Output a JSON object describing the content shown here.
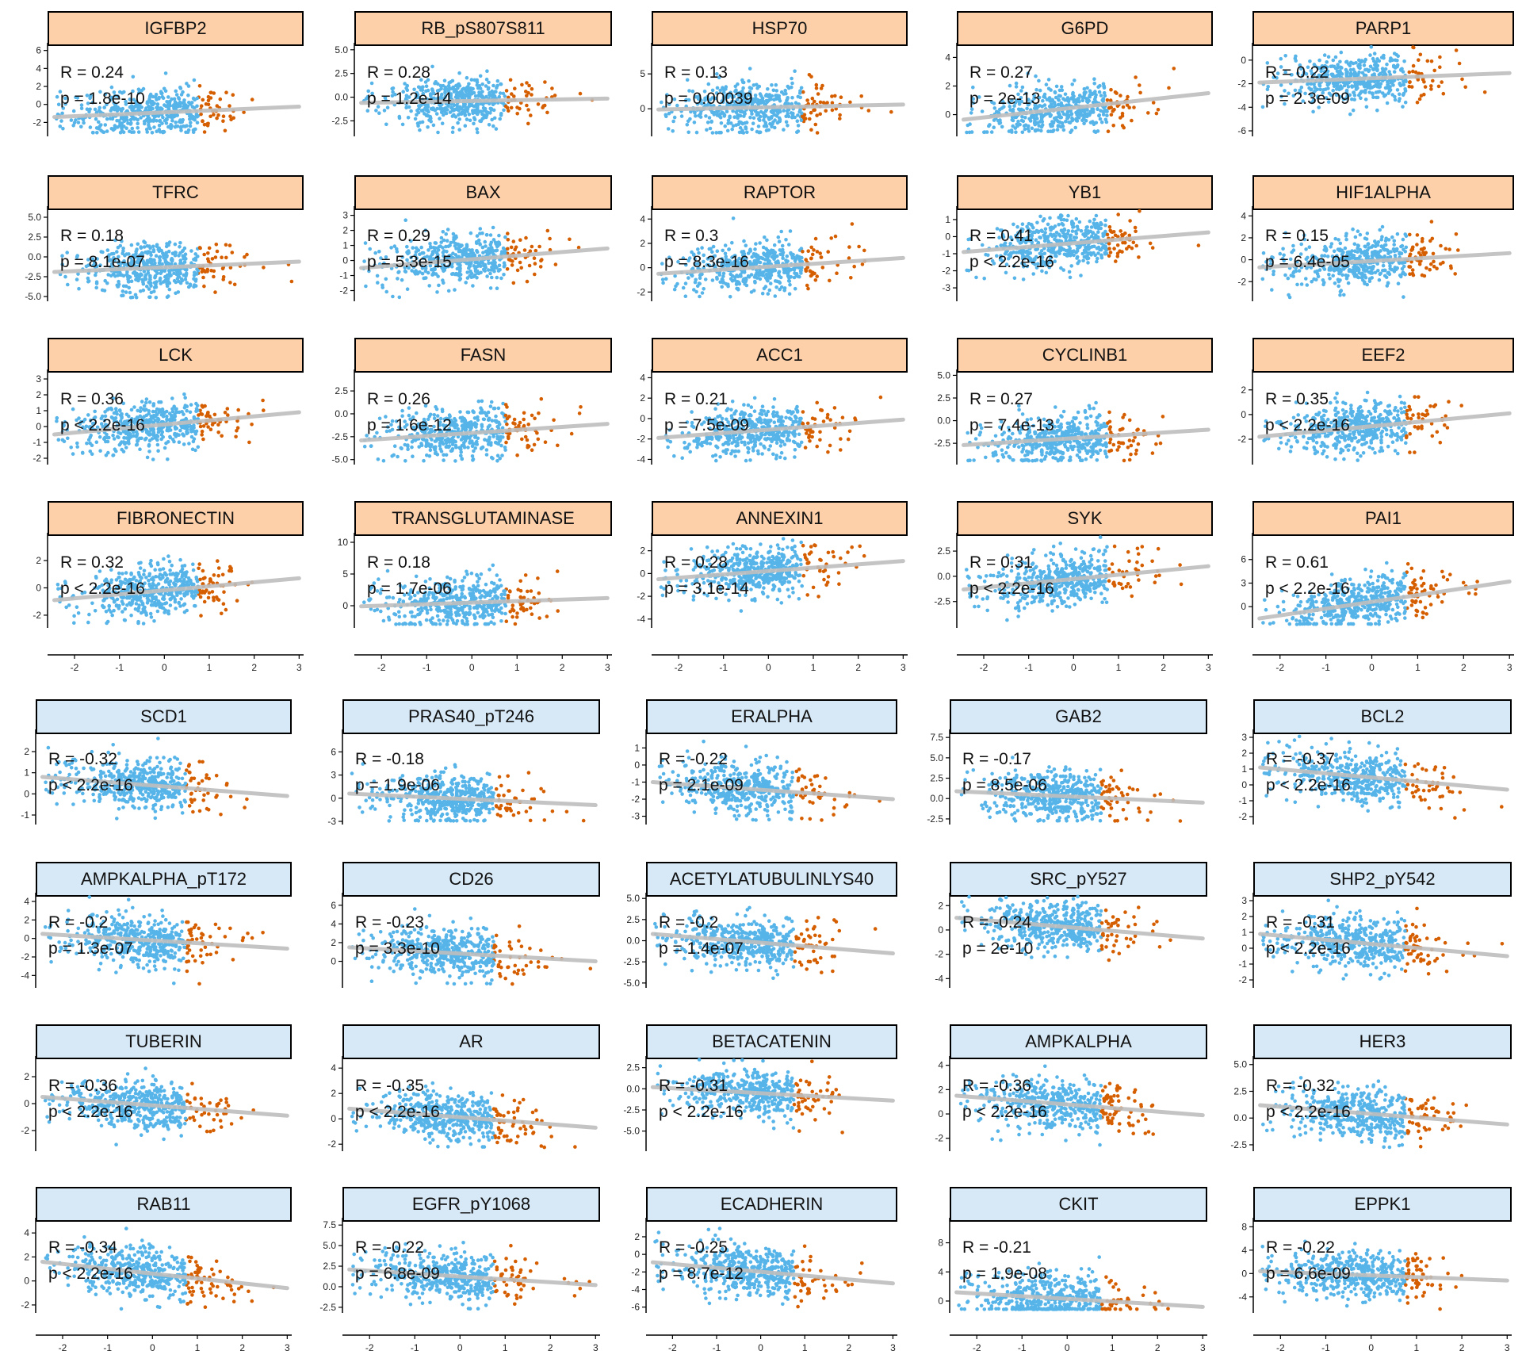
{
  "colors": {
    "low_points": "#56B4E9",
    "high_points": "#D55E00",
    "regression_line": "#BEBEBE",
    "positive_strip": "#FDD0A9",
    "negative_strip": "#D7E9F7"
  },
  "chart_data": [
    {
      "type": "scatter",
      "title": "IGFBP2",
      "r_label": "R = 0.24",
      "p_label": "p = 1.8e-10",
      "r": 0.24,
      "y_ticks": [
        "-2",
        "0",
        "2",
        "4",
        "6"
      ],
      "ylim": [
        -3.2,
        6.5
      ],
      "xlim": [
        -2.6,
        3.1
      ],
      "split_x": 0.75,
      "trend": {
        "start": -1.4,
        "end": -0.25
      },
      "group": "positive"
    },
    {
      "type": "scatter",
      "title": "RB_pS807S811",
      "r_label": "R = 0.28",
      "p_label": "p = 1.2e-14",
      "r": 0.28,
      "y_ticks": [
        "-2.5",
        "0.0",
        "2.5",
        "5.0"
      ],
      "ylim": [
        -3.8,
        5.4
      ],
      "xlim": [
        -2.6,
        3.1
      ],
      "split_x": 0.75,
      "trend": {
        "start": -0.6,
        "end": -0.15
      },
      "group": "positive"
    },
    {
      "type": "scatter",
      "title": "HSP70",
      "r_label": "R = 0.13",
      "p_label": "p = 0.00039",
      "r": 0.13,
      "y_ticks": [
        "0",
        "5"
      ],
      "ylim": [
        -3.5,
        9.0
      ],
      "xlim": [
        -2.6,
        3.1
      ],
      "split_x": 0.75,
      "trend": {
        "start": -0.1,
        "end": 0.6
      },
      "group": "positive"
    },
    {
      "type": "scatter",
      "title": "G6PD",
      "r_label": "R = 0.27",
      "p_label": "p = 2e-13",
      "r": 0.27,
      "y_ticks": [
        "0",
        "2",
        "4"
      ],
      "ylim": [
        -1.3,
        4.8
      ],
      "xlim": [
        -2.6,
        3.1
      ],
      "split_x": 0.75,
      "trend": {
        "start": -0.35,
        "end": 1.5
      },
      "group": "positive"
    },
    {
      "type": "scatter",
      "title": "PARP1",
      "r_label": "R = 0.22",
      "p_label": "p = 2.3e-09",
      "r": 0.22,
      "y_ticks": [
        "-6",
        "-4",
        "-2",
        "0"
      ],
      "ylim": [
        -6.2,
        1.2
      ],
      "xlim": [
        -2.6,
        3.1
      ],
      "split_x": 0.75,
      "trend": {
        "start": -1.9,
        "end": -1.1
      },
      "group": "positive"
    },
    {
      "type": "scatter",
      "title": "TFRC",
      "r_label": "R = 0.18",
      "p_label": "p = 8.1e-07",
      "r": 0.18,
      "y_ticks": [
        "-5.0",
        "-2.5",
        "0.0",
        "2.5",
        "5.0"
      ],
      "ylim": [
        -5.2,
        6.0
      ],
      "xlim": [
        -2.6,
        3.1
      ],
      "split_x": 0.75,
      "trend": {
        "start": -1.9,
        "end": -0.6
      },
      "group": "positive"
    },
    {
      "type": "scatter",
      "title": "BAX",
      "r_label": "R = 0.29",
      "p_label": "p = 5.3e-15",
      "r": 0.29,
      "y_ticks": [
        "-2",
        "-1",
        "0",
        "1",
        "2",
        "3"
      ],
      "ylim": [
        -2.5,
        3.4
      ],
      "xlim": [
        -2.6,
        3.1
      ],
      "split_x": 0.75,
      "trend": {
        "start": -0.5,
        "end": 0.8
      },
      "group": "positive"
    },
    {
      "type": "scatter",
      "title": "RAPTOR",
      "r_label": "R = 0.3",
      "p_label": "p = 8.3e-16",
      "r": 0.3,
      "y_ticks": [
        "-2",
        "0",
        "2",
        "4"
      ],
      "ylim": [
        -2.5,
        4.8
      ],
      "xlim": [
        -2.6,
        3.1
      ],
      "split_x": 0.75,
      "trend": {
        "start": -0.5,
        "end": 0.8
      },
      "group": "positive"
    },
    {
      "type": "scatter",
      "title": "YB1",
      "r_label": "R = 0.41",
      "p_label": "p < 2.2e-16",
      "r": 0.41,
      "y_ticks": [
        "-3",
        "-2",
        "-1",
        "0",
        "1"
      ],
      "ylim": [
        -3.6,
        1.6
      ],
      "xlim": [
        -2.6,
        3.1
      ],
      "split_x": 0.75,
      "trend": {
        "start": -0.9,
        "end": 0.25
      },
      "group": "positive"
    },
    {
      "type": "scatter",
      "title": "HIF1ALPHA",
      "r_label": "R = 0.15",
      "p_label": "p = 6.4e-05",
      "r": 0.15,
      "y_ticks": [
        "-2",
        "0",
        "2",
        "4"
      ],
      "ylim": [
        -3.5,
        4.6
      ],
      "xlim": [
        -2.6,
        3.1
      ],
      "split_x": 0.75,
      "trend": {
        "start": -0.7,
        "end": 0.6
      },
      "group": "positive"
    },
    {
      "type": "scatter",
      "title": "LCK",
      "r_label": "R = 0.36",
      "p_label": "p < 2.2e-16",
      "r": 0.36,
      "y_ticks": [
        "-2",
        "-1",
        "0",
        "1",
        "2",
        "3"
      ],
      "ylim": [
        -2.2,
        3.4
      ],
      "xlim": [
        -2.6,
        3.1
      ],
      "split_x": 0.75,
      "trend": {
        "start": -0.5,
        "end": 0.9
      },
      "group": "positive"
    },
    {
      "type": "scatter",
      "title": "FASN",
      "r_label": "R = 0.26",
      "p_label": "p = 1.6e-12",
      "r": 0.26,
      "y_ticks": [
        "-5.0",
        "-2.5",
        "0.0",
        "2.5"
      ],
      "ylim": [
        -5.2,
        4.5
      ],
      "xlim": [
        -2.6,
        3.1
      ],
      "split_x": 0.75,
      "trend": {
        "start": -2.9,
        "end": -1.1
      },
      "group": "positive"
    },
    {
      "type": "scatter",
      "title": "ACC1",
      "r_label": "R = 0.21",
      "p_label": "p = 7.5e-09",
      "r": 0.21,
      "y_ticks": [
        "-4",
        "-2",
        "0",
        "2",
        "4"
      ],
      "ylim": [
        -4.2,
        4.5
      ],
      "xlim": [
        -2.6,
        3.1
      ],
      "split_x": 0.75,
      "trend": {
        "start": -1.9,
        "end": -0.1
      },
      "group": "positive"
    },
    {
      "type": "scatter",
      "title": "CYCLINB1",
      "r_label": "R = 0.27",
      "p_label": "p = 7.4e-13",
      "r": 0.27,
      "y_ticks": [
        "-2.5",
        "0.0",
        "2.5",
        "5.0"
      ],
      "ylim": [
        -4.5,
        5.3
      ],
      "xlim": [
        -2.6,
        3.1
      ],
      "split_x": 0.75,
      "trend": {
        "start": -2.7,
        "end": -1.0
      },
      "group": "positive"
    },
    {
      "type": "scatter",
      "title": "EEF2",
      "r_label": "R = 0.35",
      "p_label": "p < 2.2e-16",
      "r": 0.35,
      "y_ticks": [
        "-2",
        "0",
        "2"
      ],
      "ylim": [
        -3.8,
        3.4
      ],
      "xlim": [
        -2.6,
        3.1
      ],
      "split_x": 0.75,
      "trend": {
        "start": -1.8,
        "end": 0.1
      },
      "group": "positive"
    },
    {
      "type": "scatter",
      "title": "FIBRONECTIN",
      "r_label": "R = 0.32",
      "p_label": "p < 2.2e-16",
      "r": 0.32,
      "y_ticks": [
        "-2",
        "0",
        "2"
      ],
      "ylim": [
        -2.7,
        3.8
      ],
      "xlim": [
        -2.6,
        3.1
      ],
      "split_x": 0.75,
      "trend": {
        "start": -0.9,
        "end": 0.7
      },
      "group": "positive"
    },
    {
      "type": "scatter",
      "title": "TRANSGLUTAMINASE",
      "r_label": "R = 0.18",
      "p_label": "p = 1.7e-06",
      "r": 0.18,
      "y_ticks": [
        "0",
        "5",
        "10"
      ],
      "ylim": [
        -3.0,
        11.0
      ],
      "xlim": [
        -2.6,
        3.1
      ],
      "split_x": 0.75,
      "trend": {
        "start": -0.1,
        "end": 1.2
      },
      "group": "positive"
    },
    {
      "type": "scatter",
      "title": "ANNEXIN1",
      "r_label": "R = 0.28",
      "p_label": "p = 3.1e-14",
      "r": 0.28,
      "y_ticks": [
        "-4",
        "-2",
        "0",
        "2"
      ],
      "ylim": [
        -4.5,
        3.3
      ],
      "xlim": [
        -2.6,
        3.1
      ],
      "split_x": 0.75,
      "trend": {
        "start": -0.5,
        "end": 1.1
      },
      "group": "positive"
    },
    {
      "type": "scatter",
      "title": "SYK",
      "r_label": "R = 0.31",
      "p_label": "p < 2.2e-16",
      "r": 0.31,
      "y_ticks": [
        "-2.5",
        "0.0",
        "2.5"
      ],
      "ylim": [
        -4.8,
        4.0
      ],
      "xlim": [
        -2.6,
        3.1
      ],
      "split_x": 0.75,
      "trend": {
        "start": -1.3,
        "end": 1.0
      },
      "group": "positive"
    },
    {
      "type": "scatter",
      "title": "PAI1",
      "r_label": "R = 0.61",
      "p_label": "p < 2.2e-16",
      "r": 0.61,
      "y_ticks": [
        "0",
        "3",
        "6"
      ],
      "ylim": [
        -2.3,
        9.0
      ],
      "xlim": [
        -2.6,
        3.1
      ],
      "split_x": 0.75,
      "trend": {
        "start": -1.5,
        "end": 3.2
      },
      "group": "positive"
    },
    {
      "type": "scatter",
      "title": "SCD1",
      "r_label": "R = -0.32",
      "p_label": "p < 2.2e-16",
      "r": -0.32,
      "y_ticks": [
        "-1",
        "0",
        "1",
        "2"
      ],
      "ylim": [
        -1.3,
        2.9
      ],
      "xlim": [
        -2.6,
        3.1
      ],
      "split_x": 0.75,
      "trend": {
        "start": 0.8,
        "end": -0.1
      },
      "group": "negative"
    },
    {
      "type": "scatter",
      "title": "PRAS40_pT246",
      "r_label": "R = -0.18",
      "p_label": "p = 1.9e-06",
      "r": -0.18,
      "y_ticks": [
        "-3",
        "0",
        "3",
        "6"
      ],
      "ylim": [
        -3.0,
        8.5
      ],
      "xlim": [
        -2.6,
        3.1
      ],
      "split_x": 0.75,
      "trend": {
        "start": 0.6,
        "end": -0.9
      },
      "group": "negative"
    },
    {
      "type": "scatter",
      "title": "ERALPHA",
      "r_label": "R = -0.22",
      "p_label": "p = 2.1e-09",
      "r": -0.22,
      "y_ticks": [
        "-3",
        "-2",
        "-1",
        "0",
        "1"
      ],
      "ylim": [
        -3.3,
        1.9
      ],
      "xlim": [
        -2.6,
        3.1
      ],
      "split_x": 0.75,
      "trend": {
        "start": -1.0,
        "end": -2.0
      },
      "group": "negative"
    },
    {
      "type": "scatter",
      "title": "GAB2",
      "r_label": "R = -0.17",
      "p_label": "p = 8.5e-06",
      "r": -0.17,
      "y_ticks": [
        "-2.5",
        "0.0",
        "2.5",
        "5.0",
        "7.5"
      ],
      "ylim": [
        -2.8,
        8.1
      ],
      "xlim": [
        -2.6,
        3.1
      ],
      "split_x": 0.75,
      "trend": {
        "start": 0.9,
        "end": -0.5
      },
      "group": "negative"
    },
    {
      "type": "scatter",
      "title": "BCL2",
      "r_label": "R = -0.37",
      "p_label": "p < 2.2e-16",
      "r": -0.37,
      "y_ticks": [
        "-2",
        "-1",
        "0",
        "1",
        "2",
        "3"
      ],
      "ylim": [
        -2.3,
        3.3
      ],
      "xlim": [
        -2.6,
        3.1
      ],
      "split_x": 0.75,
      "trend": {
        "start": 1.1,
        "end": -0.3
      },
      "group": "negative"
    },
    {
      "type": "scatter",
      "title": "AMPKALPHA_pT172",
      "r_label": "R = -0.2",
      "p_label": "p = 1.3e-07",
      "r": -0.2,
      "y_ticks": [
        "-4",
        "-2",
        "0",
        "2",
        "4"
      ],
      "ylim": [
        -5.0,
        4.6
      ],
      "xlim": [
        -2.6,
        3.1
      ],
      "split_x": 0.75,
      "trend": {
        "start": 0.5,
        "end": -1.1
      },
      "group": "negative"
    },
    {
      "type": "scatter",
      "title": "CD26",
      "r_label": "R = -0.23",
      "p_label": "p = 3.3e-10",
      "r": -0.23,
      "y_ticks": [
        "0",
        "2",
        "4",
        "6"
      ],
      "ylim": [
        -2.5,
        7.0
      ],
      "xlim": [
        -2.6,
        3.1
      ],
      "split_x": 0.75,
      "trend": {
        "start": 1.5,
        "end": 0.0
      },
      "group": "negative"
    },
    {
      "type": "scatter",
      "title": "ACETYLATUBULINLYS40",
      "r_label": "R = -0.2",
      "p_label": "p = 1.4e-07",
      "r": -0.2,
      "y_ticks": [
        "-5.0",
        "-2.5",
        "0.0",
        "2.5",
        "5.0"
      ],
      "ylim": [
        -5.2,
        5.3
      ],
      "xlim": [
        -2.6,
        3.1
      ],
      "split_x": 0.75,
      "trend": {
        "start": 0.8,
        "end": -1.5
      },
      "group": "negative"
    },
    {
      "type": "scatter",
      "title": "SRC_pY527",
      "r_label": "R = -0.24",
      "p_label": "p = 2e-10",
      "r": -0.24,
      "y_ticks": [
        "-4",
        "-2",
        "0",
        "2"
      ],
      "ylim": [
        -4.5,
        2.8
      ],
      "xlim": [
        -2.6,
        3.1
      ],
      "split_x": 0.75,
      "trend": {
        "start": 1.0,
        "end": -0.7
      },
      "group": "negative"
    },
    {
      "type": "scatter",
      "title": "SHP2_pY542",
      "r_label": "R = -0.31",
      "p_label": "p < 2.2e-16",
      "r": -0.31,
      "y_ticks": [
        "-2",
        "-1",
        "0",
        "1",
        "2",
        "3"
      ],
      "ylim": [
        -2.3,
        3.3
      ],
      "xlim": [
        -2.6,
        3.1
      ],
      "split_x": 0.75,
      "trend": {
        "start": 0.9,
        "end": -0.5
      },
      "group": "negative"
    },
    {
      "type": "scatter",
      "title": "TUBERIN",
      "r_label": "R = -0.36",
      "p_label": "p < 2.2e-16",
      "r": -0.36,
      "y_ticks": [
        "-2",
        "0",
        "2"
      ],
      "ylim": [
        -3.3,
        3.3
      ],
      "xlim": [
        -2.6,
        3.1
      ],
      "split_x": 0.75,
      "trend": {
        "start": 0.5,
        "end": -0.9
      },
      "group": "negative"
    },
    {
      "type": "scatter",
      "title": "AR",
      "r_label": "R = -0.35",
      "p_label": "p < 2.2e-16",
      "r": -0.35,
      "y_ticks": [
        "-2",
        "0",
        "2",
        "4"
      ],
      "ylim": [
        -2.3,
        4.7
      ],
      "xlim": [
        -2.6,
        3.1
      ],
      "split_x": 0.75,
      "trend": {
        "start": 0.8,
        "end": -0.7
      },
      "group": "negative"
    },
    {
      "type": "scatter",
      "title": "BETACATENIN",
      "r_label": "R = -0.31",
      "p_label": "p < 2.2e-16",
      "r": -0.31,
      "y_ticks": [
        "-5.0",
        "-2.5",
        "0.0",
        "2.5"
      ],
      "ylim": [
        -7.0,
        3.5
      ],
      "xlim": [
        -2.6,
        3.1
      ],
      "split_x": 0.75,
      "trend": {
        "start": 0.2,
        "end": -1.4
      },
      "group": "negative"
    },
    {
      "type": "scatter",
      "title": "AMPKALPHA",
      "r_label": "R = -0.36",
      "p_label": "p < 2.2e-16",
      "r": -0.36,
      "y_ticks": [
        "-2",
        "0",
        "2",
        "4"
      ],
      "ylim": [
        -2.8,
        4.5
      ],
      "xlim": [
        -2.6,
        3.1
      ],
      "split_x": 0.75,
      "trend": {
        "start": 1.5,
        "end": -0.1
      },
      "group": "negative"
    },
    {
      "type": "scatter",
      "title": "HER3",
      "r_label": "R = -0.32",
      "p_label": "p < 2.2e-16",
      "r": -0.32,
      "y_ticks": [
        "-2.5",
        "0.0",
        "2.5",
        "5.0"
      ],
      "ylim": [
        -2.8,
        5.5
      ],
      "xlim": [
        -2.6,
        3.1
      ],
      "split_x": 0.75,
      "trend": {
        "start": 1.2,
        "end": -0.6
      },
      "group": "negative"
    },
    {
      "type": "scatter",
      "title": "RAB11",
      "r_label": "R = -0.34",
      "p_label": "p < 2.2e-16",
      "r": -0.34,
      "y_ticks": [
        "-2",
        "0",
        "2",
        "4"
      ],
      "ylim": [
        -2.4,
        5.0
      ],
      "xlim": [
        -2.6,
        3.1
      ],
      "split_x": 0.75,
      "trend": {
        "start": 1.6,
        "end": -0.6
      },
      "group": "negative"
    },
    {
      "type": "scatter",
      "title": "EGFR_pY1068",
      "r_label": "R = -0.22",
      "p_label": "p = 6.8e-09",
      "r": -0.22,
      "y_ticks": [
        "-2.5",
        "0.0",
        "2.5",
        "5.0",
        "7.5"
      ],
      "ylim": [
        -2.8,
        8.0
      ],
      "xlim": [
        -2.6,
        3.1
      ],
      "split_x": 0.75,
      "trend": {
        "start": 2.1,
        "end": 0.2
      },
      "group": "negative"
    },
    {
      "type": "scatter",
      "title": "ECADHERIN",
      "r_label": "R = -0.25",
      "p_label": "p = 8.7e-12",
      "r": -0.25,
      "y_ticks": [
        "-6",
        "-4",
        "-2",
        "0",
        "2"
      ],
      "ylim": [
        -6.3,
        3.8
      ],
      "xlim": [
        -2.6,
        3.1
      ],
      "split_x": 0.75,
      "trend": {
        "start": -0.9,
        "end": -3.3
      },
      "group": "negative"
    },
    {
      "type": "scatter",
      "title": "CKIT",
      "r_label": "R = -0.21",
      "p_label": "p = 1.9e-08",
      "r": -0.21,
      "y_ticks": [
        "0",
        "4",
        "8"
      ],
      "ylim": [
        -1.2,
        11.0
      ],
      "xlim": [
        -2.6,
        3.1
      ],
      "split_x": 0.75,
      "trend": {
        "start": 1.2,
        "end": -0.8
      },
      "group": "negative"
    },
    {
      "type": "scatter",
      "title": "EPPK1",
      "r_label": "R = -0.22",
      "p_label": "p = 6.6e-09",
      "r": -0.22,
      "y_ticks": [
        "-4",
        "0",
        "4",
        "8"
      ],
      "ylim": [
        -6.2,
        9.0
      ],
      "xlim": [
        -2.6,
        3.1
      ],
      "split_x": 0.75,
      "trend": {
        "start": 0.4,
        "end": -1.2
      },
      "group": "negative"
    }
  ],
  "x_ticks": [
    "-2",
    "-1",
    "0",
    "1",
    "2",
    "3"
  ]
}
